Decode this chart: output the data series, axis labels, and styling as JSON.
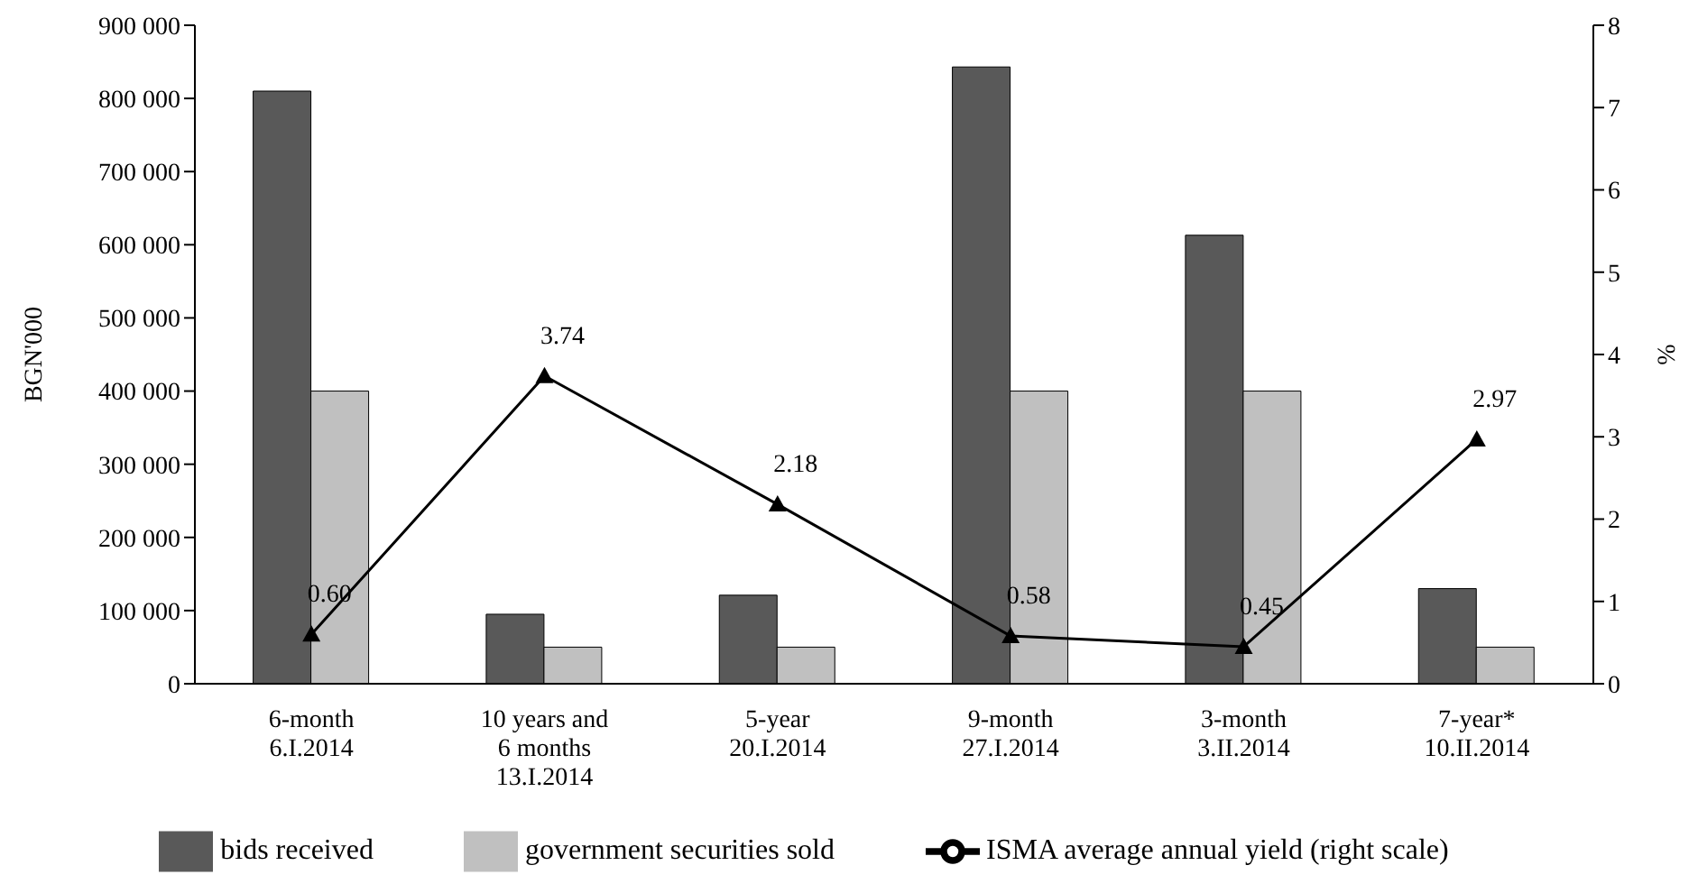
{
  "chart_data": {
    "type": "bar",
    "categories": [
      "6-month\n6.I.2014",
      "10 years and\n6 months\n13.I.2014",
      "5-year\n20.I.2014",
      "9-month\n27.I.2014",
      "3-month\n3.II.2014",
      "7-year*\n10.II.2014"
    ],
    "ylabel": "BGN'000",
    "y2label": "%",
    "ylim": [
      0,
      900000
    ],
    "yticks": [
      {
        "value": 0,
        "label": "0"
      },
      {
        "value": 100000,
        "label": "100 000"
      },
      {
        "value": 200000,
        "label": "200 000"
      },
      {
        "value": 300000,
        "label": "300 000"
      },
      {
        "value": 400000,
        "label": "400 000"
      },
      {
        "value": 500000,
        "label": "500 000"
      },
      {
        "value": 600000,
        "label": "600 000"
      },
      {
        "value": 700000,
        "label": "700 000"
      },
      {
        "value": 800000,
        "label": "800 000"
      },
      {
        "value": 900000,
        "label": "900 000"
      }
    ],
    "y2lim": [
      0,
      8
    ],
    "y2ticks": [
      0,
      1,
      2,
      3,
      4,
      5,
      6,
      7,
      8
    ],
    "series": [
      {
        "name": "bids received",
        "color": "#595959",
        "values": [
          810000,
          95000,
          121000,
          843000,
          613000,
          130000
        ]
      },
      {
        "name": "government securities sold",
        "color": "#c0c0c0",
        "values": [
          400000,
          50000,
          50000,
          400000,
          400000,
          50000
        ]
      },
      {
        "name": "ISMA average annual yield (right scale)",
        "type": "line",
        "axis": "y2",
        "color": "#000000",
        "marker": "triangle",
        "values": [
          0.6,
          3.74,
          2.18,
          0.58,
          0.45,
          2.97
        ],
        "value_labels": [
          "0.60",
          "3.74",
          "2.18",
          "0.58",
          "0.45",
          "2.97"
        ]
      }
    ],
    "legend": "bottom"
  }
}
